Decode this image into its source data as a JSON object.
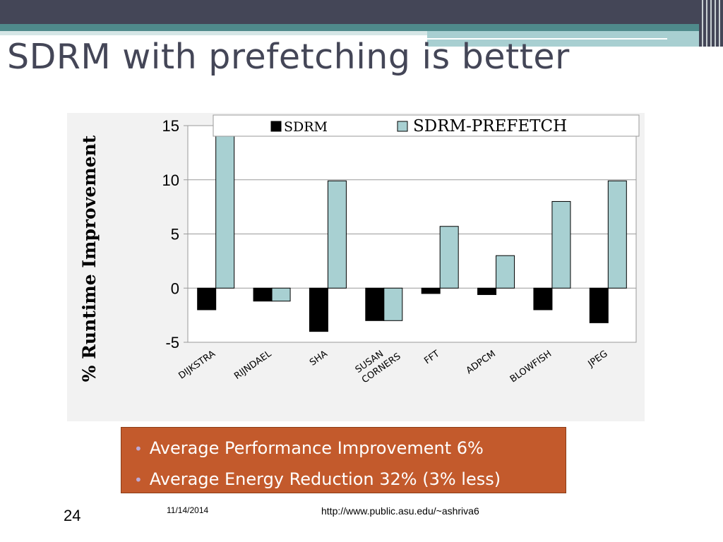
{
  "slide": {
    "title": "SDRM with prefetching is better",
    "page_number": "24",
    "date": "11/14/2014",
    "url": "http://www.public.asu.edu/~ashriva6",
    "bullets": [
      "Average Performance Improvement 6%",
      "Average Energy Reduction 32% (3% less)"
    ],
    "colors": {
      "header": "#444657",
      "accent": "#4f8a8b",
      "bullet_box": "#c35a2c",
      "bullet_dot": "#bcaad8"
    }
  },
  "chart_data": {
    "type": "bar",
    "title": "",
    "xlabel": "",
    "ylabel": "% Runtime Improvement",
    "ylim": [
      -5,
      15
    ],
    "yticks": [
      15,
      10,
      5,
      0,
      -5
    ],
    "grid": true,
    "legend_position": "top",
    "categories": [
      [
        "DIJKSTRA"
      ],
      [
        "RIJNDAEL"
      ],
      [
        "SHA"
      ],
      [
        "SUSAN",
        "CORNERS"
      ],
      [
        "FFT"
      ],
      [
        "ADPCM"
      ],
      [
        "BLOWFISH"
      ],
      [
        "JPEG"
      ]
    ],
    "series": [
      {
        "name": "SDRM",
        "color": "#000000",
        "values": [
          -2.0,
          -1.2,
          -4.0,
          -3.0,
          -0.5,
          -0.6,
          -2.0,
          -3.2
        ]
      },
      {
        "name": "SDRM-PREFETCH",
        "color": "#a8d0d2",
        "values": [
          14.5,
          -1.2,
          9.9,
          -3.0,
          5.7,
          3.0,
          8.0,
          9.9
        ]
      }
    ]
  }
}
